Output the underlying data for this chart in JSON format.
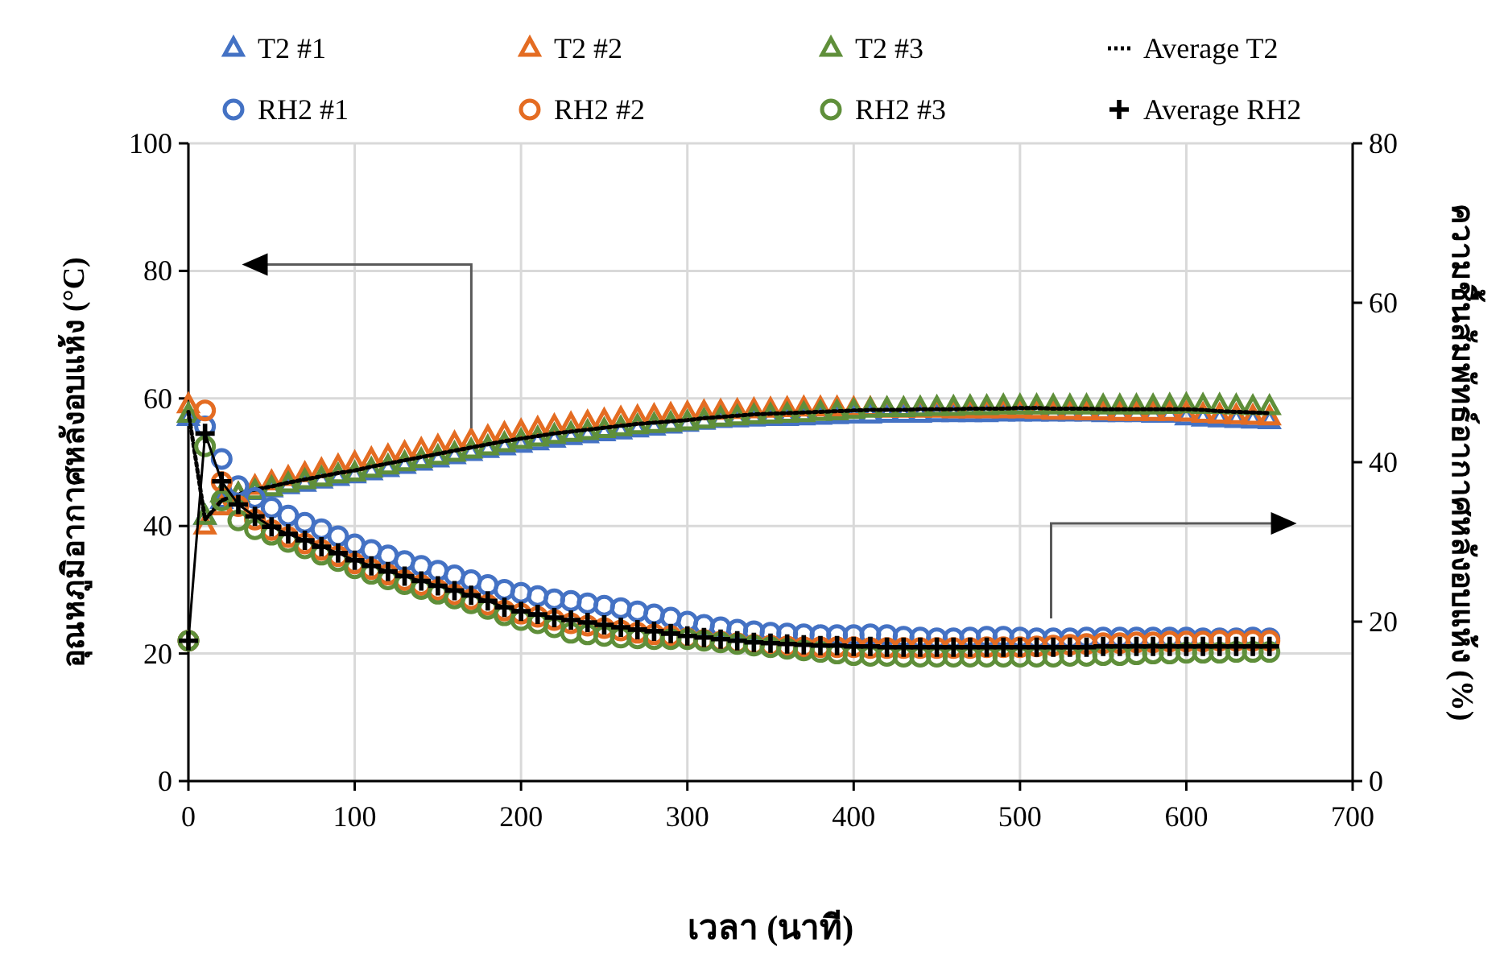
{
  "chart_data": {
    "type": "scatter",
    "xlabel": "เวลา (นาที)",
    "ylabel": "อุณหภูมิอากาศหลังอบแห้ง (°C)",
    "y2label": "ความชื้นสัมพัทธ์อากาศหลังอบแห้ง (%)",
    "x": [
      0,
      10,
      20,
      30,
      40,
      50,
      60,
      70,
      80,
      90,
      100,
      110,
      120,
      130,
      140,
      150,
      160,
      170,
      180,
      190,
      200,
      210,
      220,
      230,
      240,
      250,
      260,
      270,
      280,
      290,
      300,
      310,
      320,
      330,
      340,
      350,
      360,
      370,
      380,
      390,
      400,
      410,
      420,
      430,
      440,
      450,
      460,
      470,
      480,
      490,
      500,
      510,
      520,
      530,
      540,
      550,
      560,
      570,
      580,
      590,
      600,
      610,
      620,
      630,
      640,
      650
    ],
    "xlim": [
      0,
      700
    ],
    "xticks": [
      0,
      100,
      200,
      300,
      400,
      500,
      600,
      700
    ],
    "ylim": [
      0,
      100
    ],
    "yticks": [
      0,
      20,
      40,
      60,
      80,
      100
    ],
    "y2lim": [
      0,
      80
    ],
    "y2ticks": [
      0,
      20,
      40,
      60,
      80
    ],
    "grid": true,
    "legend": "top",
    "series": [
      {
        "name": "T2 #1",
        "type": "scatter",
        "marker": "triangle",
        "color": "#4472c4",
        "values": [
          57.0,
          41.5,
          44.0,
          45.0,
          45.4,
          45.8,
          46.3,
          46.7,
          47.2,
          47.6,
          48.0,
          48.5,
          49.0,
          49.5,
          50.0,
          50.5,
          51.0,
          51.5,
          52.0,
          52.4,
          52.8,
          53.2,
          53.6,
          54.0,
          54.3,
          54.6,
          54.9,
          55.2,
          55.5,
          55.8,
          56.1,
          56.4,
          56.7,
          56.8,
          56.9,
          57.0,
          57.0,
          57.1,
          57.2,
          57.3,
          57.4,
          57.4,
          57.5,
          57.5,
          57.5,
          57.6,
          57.6,
          57.6,
          57.6,
          57.7,
          57.7,
          57.7,
          57.7,
          57.7,
          57.7,
          57.6,
          57.6,
          57.6,
          57.5,
          57.5,
          57.1,
          56.9,
          56.8,
          56.7,
          56.6,
          56.5
        ]
      },
      {
        "name": "T2 #2",
        "type": "scatter",
        "marker": "triangle",
        "color": "#e46c22",
        "values": [
          59.0,
          40.0,
          43.0,
          45.0,
          46.2,
          46.9,
          47.6,
          48.2,
          48.8,
          49.4,
          49.9,
          50.5,
          51.0,
          51.5,
          52.0,
          52.5,
          53.0,
          53.5,
          54.0,
          54.5,
          54.9,
          55.3,
          55.7,
          56.0,
          56.3,
          56.6,
          56.9,
          57.1,
          57.3,
          57.5,
          57.7,
          57.9,
          58.0,
          58.1,
          58.2,
          58.3,
          58.4,
          58.5,
          58.5,
          58.5,
          58.4,
          58.4,
          58.3,
          58.3,
          58.3,
          58.3,
          58.2,
          58.2,
          58.2,
          58.2,
          58.2,
          58.1,
          58.0,
          58.0,
          57.9,
          57.9,
          57.8,
          57.8,
          57.8,
          57.8,
          57.7,
          57.5,
          57.4,
          57.3,
          57.2,
          57.1
        ]
      },
      {
        "name": "T2 #3",
        "type": "scatter",
        "marker": "triangle",
        "color": "#5f8f3a",
        "values": [
          57.5,
          41.5,
          45.0,
          45.0,
          45.5,
          46.0,
          46.6,
          47.1,
          47.5,
          48.0,
          48.3,
          48.9,
          49.4,
          49.9,
          50.4,
          50.9,
          51.4,
          51.9,
          52.4,
          52.9,
          53.4,
          53.8,
          54.2,
          54.5,
          54.8,
          55.1,
          55.4,
          55.7,
          55.9,
          56.1,
          56.3,
          56.6,
          56.9,
          57.1,
          57.3,
          57.4,
          57.5,
          57.6,
          57.8,
          57.9,
          58.1,
          58.3,
          58.4,
          58.4,
          58.5,
          58.6,
          58.6,
          58.7,
          58.7,
          58.8,
          58.8,
          58.8,
          58.8,
          58.8,
          58.8,
          58.8,
          58.8,
          58.8,
          58.8,
          58.9,
          59.0,
          58.9,
          58.9,
          58.8,
          58.7,
          58.7
        ]
      },
      {
        "name": "Average T2",
        "type": "line",
        "marker": "none",
        "line_style": "dotted",
        "color": "#000000",
        "values": [
          57.9,
          41.0,
          44.0,
          45.0,
          45.7,
          46.2,
          46.8,
          47.3,
          47.8,
          48.3,
          48.7,
          49.3,
          49.8,
          50.3,
          50.8,
          51.3,
          51.8,
          52.3,
          52.8,
          53.3,
          53.7,
          54.1,
          54.5,
          54.8,
          55.1,
          55.4,
          55.7,
          56.0,
          56.2,
          56.4,
          56.6,
          56.9,
          57.1,
          57.3,
          57.5,
          57.6,
          57.7,
          57.8,
          57.9,
          58.0,
          58.1,
          58.2,
          58.2,
          58.2,
          58.3,
          58.3,
          58.3,
          58.4,
          58.4,
          58.4,
          58.5,
          58.5,
          58.4,
          58.4,
          58.4,
          58.3,
          58.3,
          58.3,
          58.3,
          58.3,
          58.3,
          58.2,
          58.0,
          57.9,
          57.8,
          57.7
        ]
      },
      {
        "name": "RH2 #1",
        "type": "scatter",
        "marker": "circle",
        "axis": "y2",
        "color": "#4472c4",
        "values": [
          17.6,
          44.5,
          40.4,
          37.0,
          35.5,
          34.3,
          33.3,
          32.4,
          31.6,
          30.7,
          29.7,
          29.0,
          28.3,
          27.6,
          27.0,
          26.4,
          25.8,
          25.2,
          24.6,
          24.0,
          23.6,
          23.2,
          22.8,
          22.6,
          22.3,
          22.0,
          21.7,
          21.3,
          20.9,
          20.5,
          20.0,
          19.6,
          19.3,
          19.0,
          18.8,
          18.6,
          18.5,
          18.4,
          18.3,
          18.3,
          18.3,
          18.4,
          18.3,
          18.1,
          18.0,
          17.9,
          17.9,
          18.0,
          18.1,
          18.1,
          18.0,
          17.9,
          17.9,
          17.9,
          18.0,
          18.0,
          18.0,
          18.0,
          18.0,
          18.0,
          18.0,
          17.9,
          17.9,
          17.9,
          18.0,
          17.9
        ]
      },
      {
        "name": "RH2 #2",
        "type": "scatter",
        "marker": "circle",
        "axis": "y2",
        "color": "#e46c22",
        "values": [
          17.6,
          46.5,
          37.5,
          34.5,
          32.8,
          31.5,
          30.6,
          29.8,
          29.0,
          28.2,
          27.3,
          26.6,
          25.9,
          25.2,
          24.6,
          24.0,
          23.4,
          22.8,
          22.1,
          21.4,
          21.0,
          20.6,
          20.2,
          19.8,
          19.5,
          19.2,
          18.9,
          18.6,
          18.4,
          18.2,
          17.9,
          17.7,
          17.5,
          17.3,
          17.1,
          17.0,
          16.9,
          16.8,
          16.8,
          16.8,
          16.8,
          16.7,
          16.7,
          16.7,
          16.7,
          16.7,
          16.7,
          16.7,
          16.8,
          16.8,
          16.8,
          16.9,
          17.0,
          17.1,
          17.2,
          17.3,
          17.3,
          17.4,
          17.4,
          17.5,
          17.5,
          17.5,
          17.6,
          17.6,
          17.6,
          17.6
        ]
      },
      {
        "name": "RH2 #3",
        "type": "scatter",
        "marker": "circle",
        "axis": "y2",
        "color": "#5f8f3a",
        "values": [
          17.6,
          42.0,
          35.2,
          32.7,
          31.6,
          30.9,
          30.0,
          29.2,
          28.4,
          27.6,
          26.7,
          26.0,
          25.3,
          24.7,
          24.1,
          23.5,
          22.9,
          22.3,
          21.6,
          20.8,
          20.2,
          19.8,
          19.3,
          18.6,
          18.4,
          18.2,
          18.0,
          17.9,
          17.8,
          17.8,
          17.8,
          17.6,
          17.4,
          17.2,
          17.0,
          16.8,
          16.6,
          16.4,
          16.2,
          16.0,
          15.8,
          15.7,
          15.7,
          15.6,
          15.6,
          15.6,
          15.6,
          15.6,
          15.6,
          15.6,
          15.6,
          15.6,
          15.6,
          15.7,
          15.7,
          15.8,
          15.8,
          15.9,
          16.0,
          16.0,
          16.1,
          16.1,
          16.1,
          16.2,
          16.2,
          16.2
        ]
      },
      {
        "name": "Average RH2",
        "type": "line",
        "marker": "cross",
        "line_style": "solid",
        "axis": "y2",
        "color": "#000000",
        "values": [
          17.6,
          43.6,
          37.6,
          34.7,
          33.2,
          31.9,
          31.0,
          30.2,
          29.4,
          28.6,
          27.7,
          27.0,
          26.3,
          25.7,
          25.1,
          24.5,
          23.9,
          23.3,
          22.6,
          21.8,
          21.3,
          20.9,
          20.5,
          20.2,
          19.9,
          19.6,
          19.3,
          19.0,
          18.8,
          18.5,
          18.2,
          18.0,
          17.8,
          17.6,
          17.4,
          17.3,
          17.2,
          17.1,
          17.0,
          17.0,
          16.9,
          16.9,
          16.8,
          16.8,
          16.8,
          16.8,
          16.8,
          16.8,
          16.8,
          16.8,
          16.8,
          16.8,
          16.8,
          16.8,
          16.8,
          16.9,
          16.9,
          16.9,
          16.9,
          16.9,
          16.9,
          16.9,
          16.9,
          16.9,
          16.9,
          16.9
        ]
      }
    ]
  }
}
